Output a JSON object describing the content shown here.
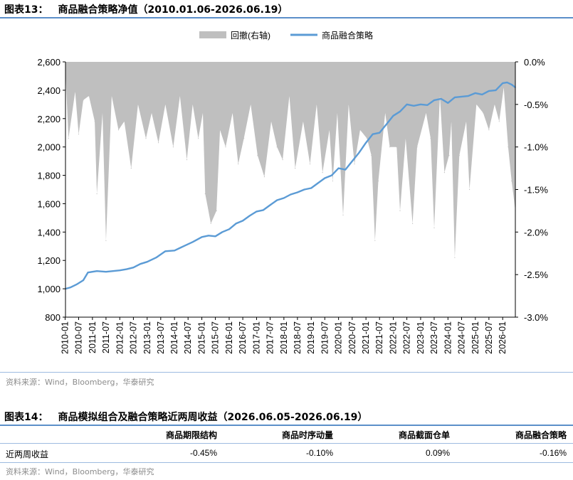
{
  "figure13": {
    "label": "图表13：",
    "title": "商品融合策略净值（2010.01.06-2026.06.19）",
    "source": "资料来源：Wind，Bloomberg，华泰研究"
  },
  "figure14": {
    "label": "图表14：",
    "title": "商品模拟组合及融合策略近两周收益（2026.06.05-2026.06.19）",
    "source": "资料来源：Wind，Bloomberg，华泰研究",
    "columns": [
      "商品期限结构",
      "商品时序动量",
      "商品截面仓单",
      "商品融合策略"
    ],
    "row_label": "近两周收益",
    "values": [
      "-0.45%",
      "-0.10%",
      "0.09%",
      "-0.16%"
    ]
  },
  "colors": {
    "line": "#5b9bd5",
    "drawdown": "#bfbfbf",
    "rule": "#5b8fc9"
  },
  "chart_data": {
    "type": "line",
    "title": "",
    "legend_position": "top",
    "grid": false,
    "x_ticks": [
      "2010-01",
      "2010-07",
      "2011-01",
      "2011-07",
      "2012-01",
      "2012-07",
      "2013-01",
      "2013-07",
      "2014-01",
      "2014-07",
      "2015-01",
      "2015-07",
      "2016-01",
      "2016-07",
      "2017-01",
      "2017-07",
      "2018-01",
      "2018-07",
      "2019-01",
      "2019-07",
      "2020-01",
      "2020-07",
      "2021-01",
      "2021-07",
      "2022-01",
      "2022-07",
      "2023-01",
      "2023-07",
      "2024-01",
      "2024-07",
      "2025-01",
      "2025-07",
      "2026-01"
    ],
    "x_range": [
      "2010-01-06",
      "2026-06-19"
    ],
    "y_left": {
      "min": 800,
      "max": 2600,
      "ticks": [
        "2,600",
        "2,400",
        "2,200",
        "2,000",
        "1,800",
        "1,600",
        "1,400",
        "1,200",
        "1,000",
        "800"
      ]
    },
    "y_right": {
      "min": -3.0,
      "max": 0.0,
      "ticks": [
        "0.0%",
        "-0.5%",
        "-1.0%",
        "-1.5%",
        "-2.0%",
        "-2.5%",
        "-3.0%"
      ]
    },
    "series": [
      {
        "name": "商品融合策略",
        "axis": "left",
        "kind": "line",
        "x": [
          "2010-01-06",
          "2010-03-15",
          "2010-06-01",
          "2010-09-01",
          "2010-11-01",
          "2011-03-01",
          "2011-07-01",
          "2011-10-01",
          "2012-01-01",
          "2012-04-01",
          "2012-07-01",
          "2012-10-01",
          "2013-01-01",
          "2013-05-01",
          "2013-09-01",
          "2014-01-01",
          "2014-05-01",
          "2014-09-01",
          "2015-01-01",
          "2015-04-01",
          "2015-07-01",
          "2015-10-01",
          "2016-01-01",
          "2016-04-01",
          "2016-07-01",
          "2016-10-01",
          "2017-01-01",
          "2017-04-01",
          "2017-07-01",
          "2017-10-01",
          "2018-01-01",
          "2018-04-01",
          "2018-07-01",
          "2018-10-01",
          "2019-01-01",
          "2019-04-01",
          "2019-07-01",
          "2019-10-01",
          "2020-01-01",
          "2020-04-01",
          "2020-07-01",
          "2020-10-01",
          "2021-01-01",
          "2021-04-01",
          "2021-07-01",
          "2021-10-01",
          "2022-01-01",
          "2022-04-01",
          "2022-07-01",
          "2022-10-01",
          "2023-01-01",
          "2023-04-01",
          "2023-07-01",
          "2023-10-01",
          "2024-01-01",
          "2024-04-01",
          "2024-07-01",
          "2024-10-01",
          "2025-01-01",
          "2025-04-01",
          "2025-07-01",
          "2025-10-01",
          "2026-01-01",
          "2026-03-01",
          "2026-05-01",
          "2026-06-19"
        ],
        "values": [
          1000,
          1010,
          1030,
          1060,
          1115,
          1125,
          1120,
          1125,
          1130,
          1138,
          1150,
          1175,
          1190,
          1220,
          1265,
          1270,
          1300,
          1330,
          1365,
          1375,
          1370,
          1400,
          1420,
          1460,
          1480,
          1515,
          1545,
          1555,
          1590,
          1625,
          1640,
          1665,
          1680,
          1700,
          1710,
          1745,
          1780,
          1800,
          1850,
          1840,
          1900,
          1960,
          2030,
          2090,
          2100,
          2160,
          2220,
          2250,
          2300,
          2290,
          2300,
          2295,
          2330,
          2340,
          2310,
          2350,
          2355,
          2360,
          2380,
          2370,
          2395,
          2400,
          2450,
          2455,
          2440,
          2420
        ]
      },
      {
        "name": "回撤(右轴)",
        "axis": "right",
        "kind": "area",
        "x": [
          "2010-01-06",
          "2010-02-15",
          "2010-05-15",
          "2010-07-01",
          "2010-09-01",
          "2010-11-15",
          "2011-02-01",
          "2011-03-01",
          "2011-05-15",
          "2011-07-01",
          "2011-09-15",
          "2011-12-15",
          "2012-03-01",
          "2012-06-01",
          "2012-09-01",
          "2012-12-15",
          "2013-03-01",
          "2013-06-01",
          "2013-09-01",
          "2013-12-15",
          "2014-03-15",
          "2014-06-15",
          "2014-09-01",
          "2014-11-15",
          "2015-01-15",
          "2015-02-15",
          "2015-05-01",
          "2015-07-15",
          "2015-09-01",
          "2015-11-15",
          "2016-02-15",
          "2016-05-01",
          "2016-07-15",
          "2016-10-15",
          "2017-01-15",
          "2017-04-15",
          "2017-07-15",
          "2017-10-01",
          "2017-12-15",
          "2018-03-15",
          "2018-06-01",
          "2018-09-15",
          "2018-12-15",
          "2019-03-15",
          "2019-06-01",
          "2019-09-01",
          "2019-10-15",
          "2019-12-15",
          "2020-03-01",
          "2020-05-15",
          "2020-08-01",
          "2020-10-15",
          "2021-01-15",
          "2021-03-15",
          "2021-05-01",
          "2021-06-15",
          "2021-09-15",
          "2021-11-15",
          "2022-02-15",
          "2022-04-01",
          "2022-06-15",
          "2022-09-15",
          "2022-11-15",
          "2023-03-15",
          "2023-05-15",
          "2023-07-01",
          "2023-09-15",
          "2023-11-15",
          "2024-01-15",
          "2024-02-15",
          "2024-04-01",
          "2024-06-01",
          "2024-09-01",
          "2024-10-15",
          "2025-01-15",
          "2025-04-15",
          "2025-07-01",
          "2025-09-15",
          "2025-11-15",
          "2026-01-15",
          "2026-03-15",
          "2026-05-01",
          "2026-06-19"
        ],
        "values": [
          -0.1,
          -0.9,
          -0.35,
          -0.85,
          -0.45,
          -0.4,
          -0.7,
          -1.55,
          -0.6,
          -2.1,
          -0.4,
          -0.8,
          -0.7,
          -1.25,
          -0.5,
          -0.9,
          -0.6,
          -0.95,
          -0.5,
          -1.0,
          -0.4,
          -1.15,
          -0.5,
          -0.9,
          -0.6,
          -1.55,
          -1.9,
          -1.75,
          -0.8,
          -1.0,
          -0.6,
          -1.2,
          -0.9,
          -0.5,
          -1.1,
          -1.35,
          -0.7,
          -1.0,
          -1.15,
          -0.4,
          -1.25,
          -0.7,
          -1.2,
          -0.5,
          -1.3,
          -0.8,
          -1.4,
          -0.6,
          -1.8,
          -0.5,
          -1.2,
          -0.8,
          -0.9,
          -1.1,
          -2.1,
          -1.4,
          -0.6,
          -1.0,
          -1.0,
          -1.75,
          -0.9,
          -1.9,
          -1.0,
          -0.6,
          -0.9,
          -1.95,
          -0.4,
          -1.3,
          -1.1,
          -0.7,
          -2.3,
          -1.1,
          -0.7,
          -1.5,
          -0.5,
          -0.6,
          -0.8,
          -0.5,
          -0.7,
          -0.3,
          -1.0,
          -1.4,
          -1.75
        ]
      }
    ]
  }
}
